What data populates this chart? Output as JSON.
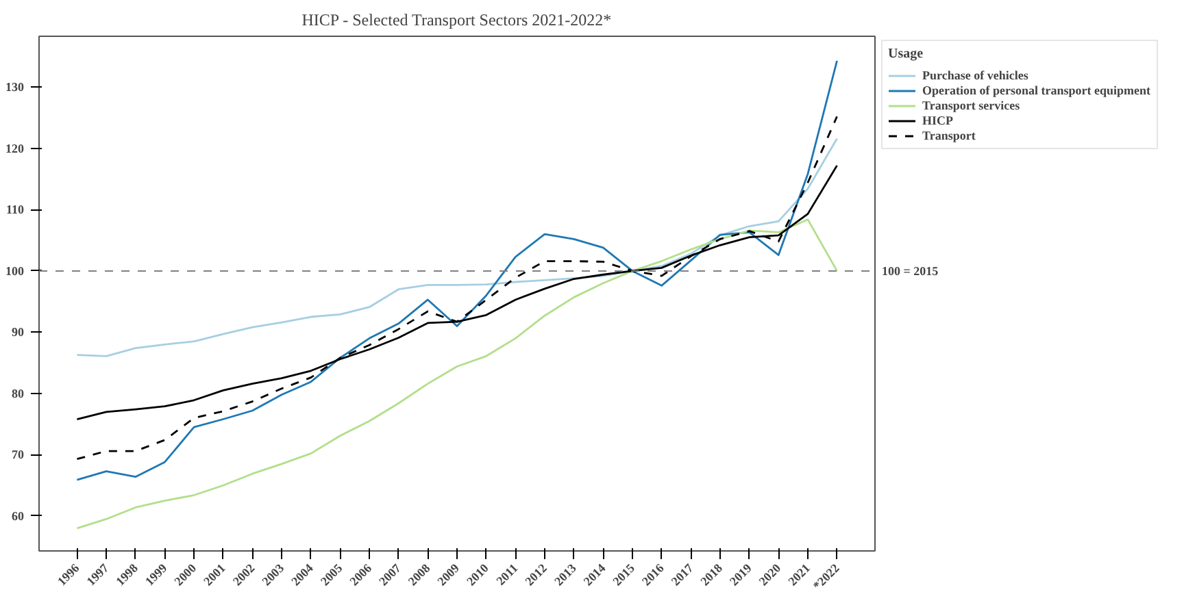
{
  "chart_data": {
    "type": "line",
    "title": "HICP - Selected Transport Sectors 2021-2022*",
    "legend_title": "Usage",
    "categories": [
      "1996",
      "1997",
      "1998",
      "1999",
      "2000",
      "2001",
      "2002",
      "2003",
      "2004",
      "2005",
      "2006",
      "2007",
      "2008",
      "2009",
      "2010",
      "2011",
      "2012",
      "2013",
      "2014",
      "2015",
      "2016",
      "2017",
      "2018",
      "2019",
      "2020",
      "2021",
      "*2022"
    ],
    "series": [
      {
        "name": "Purchase of vehicles",
        "color": "#a6cee3",
        "line_style": "solid",
        "values": [
          86.3,
          86.1,
          87.4,
          88.0,
          88.5,
          89.7,
          90.8,
          91.6,
          92.5,
          92.9,
          94.1,
          97.0,
          97.7,
          97.7,
          97.8,
          98.2,
          98.5,
          98.8,
          99.2,
          100,
          100.8,
          102.8,
          105.8,
          107.3,
          108.1,
          113.4,
          121.6
        ]
      },
      {
        "name": "Operation of personal transport equipment",
        "color": "#1f78b4",
        "line_style": "solid",
        "values": [
          65.9,
          67.3,
          66.4,
          68.8,
          74.5,
          75.8,
          77.2,
          79.8,
          81.9,
          85.8,
          89.0,
          91.4,
          95.3,
          91.0,
          96.0,
          102.3,
          106.0,
          105.2,
          103.8,
          100,
          97.6,
          101.7,
          105.9,
          106.3,
          102.6,
          115.8,
          134.3
        ]
      },
      {
        "name": "Transport services",
        "color": "#b2df8a",
        "line_style": "solid",
        "values": [
          58.0,
          59.5,
          61.4,
          62.5,
          63.4,
          65.0,
          66.9,
          68.5,
          70.2,
          73.1,
          75.5,
          78.4,
          81.6,
          84.4,
          86.1,
          89.0,
          92.7,
          95.7,
          98.0,
          100,
          101.6,
          103.5,
          105.2,
          106.6,
          106.3,
          108.4,
          100
        ]
      },
      {
        "name": "HICP",
        "color": "#000000",
        "line_style": "solid",
        "values": [
          75.8,
          77.0,
          77.4,
          77.9,
          78.9,
          80.5,
          81.6,
          82.5,
          83.7,
          85.6,
          87.2,
          89.1,
          91.5,
          91.7,
          92.8,
          95.3,
          97.1,
          98.7,
          99.4,
          100,
          100.5,
          102.5,
          104.2,
          105.5,
          105.8,
          109.3,
          117.2
        ]
      },
      {
        "name": "Transport",
        "color": "#000000",
        "line_style": "dashed",
        "values": [
          69.3,
          70.6,
          70.6,
          72.4,
          76.0,
          77.1,
          78.7,
          80.8,
          82.6,
          85.8,
          87.9,
          90.5,
          93.4,
          91.7,
          95.3,
          98.9,
          101.6,
          101.6,
          101.5,
          100,
          99.2,
          102.4,
          105.2,
          106.5,
          104.8,
          114.4,
          125.2
        ]
      }
    ],
    "ylim": [
      54.3,
      138.3
    ],
    "yticks": [
      60,
      70,
      80,
      90,
      100,
      110,
      120,
      130
    ],
    "ref_lines": [
      {
        "axis": "y",
        "value": 100,
        "label": "100 = 2015",
        "color": "#808080",
        "line_style": "dashed"
      }
    ],
    "grid": false,
    "legend": "top right",
    "marker": "none"
  }
}
